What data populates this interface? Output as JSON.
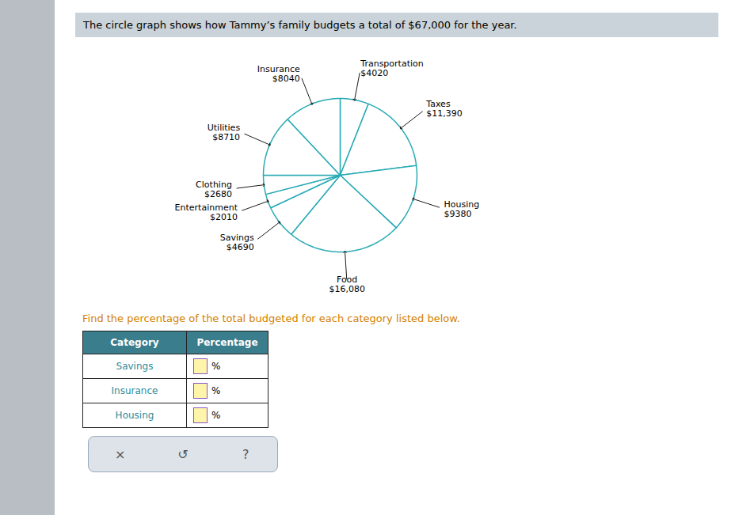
{
  "chart_data": {
    "type": "pie",
    "title": "The circle graph shows how Tammy’s family budgets a total of $67,000 for the year.",
    "subtitle": "Find the percentage of the total budgeted for each category listed below.",
    "categories": [
      "Transportation",
      "Taxes",
      "Housing",
      "Food",
      "Savings",
      "Entertainment",
      "Clothing",
      "Utilities",
      "Insurance"
    ],
    "values": [
      4020,
      11390,
      9380,
      16080,
      4690,
      2010,
      2680,
      8710,
      8040
    ],
    "value_labels": [
      "$4020",
      "$11,390",
      "$9380",
      "$16,080",
      "$4690",
      "$2010",
      "$2680",
      "$8710",
      "$8040"
    ],
    "data_labels": true,
    "color": "#29ABB5",
    "table": {
      "columns": [
        "Category",
        "Percentage"
      ],
      "rows": [
        "Savings",
        "Insurance",
        "Housing"
      ],
      "cell_suffix": "%"
    },
    "buttons": [
      "×",
      "↺",
      "?"
    ]
  }
}
